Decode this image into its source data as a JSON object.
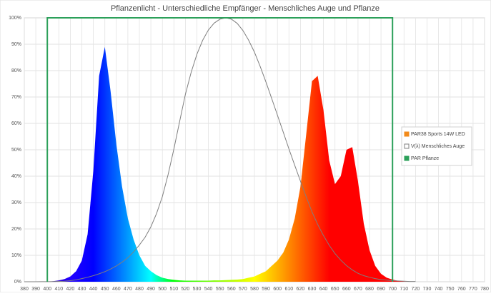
{
  "chart_data": {
    "type": "line",
    "title": "Pflanzenlicht - Unterschiedliche Empfänger - Menschliches Auge und Pflanze",
    "xlim": [
      380,
      780
    ],
    "ylim": [
      0,
      100
    ],
    "xticks": [
      380,
      390,
      400,
      410,
      420,
      430,
      440,
      450,
      460,
      470,
      480,
      490,
      500,
      510,
      520,
      530,
      540,
      550,
      560,
      570,
      580,
      590,
      600,
      610,
      620,
      630,
      640,
      650,
      660,
      670,
      680,
      690,
      700,
      710,
      720,
      730,
      740,
      750,
      760,
      770,
      780
    ],
    "yticks": [
      {
        "value": 0,
        "label": "0%"
      },
      {
        "value": 10,
        "label": "10%"
      },
      {
        "value": 20,
        "label": "20%"
      },
      {
        "value": 30,
        "label": "30%"
      },
      {
        "value": 40,
        "label": "40%"
      },
      {
        "value": 50,
        "label": "50%"
      },
      {
        "value": 60,
        "label": "60%"
      },
      {
        "value": 70,
        "label": "70%"
      },
      {
        "value": 80,
        "label": "80%"
      },
      {
        "value": 90,
        "label": "90%"
      },
      {
        "value": 100,
        "label": "100%"
      }
    ],
    "grid": true,
    "legend": "right",
    "series": [
      {
        "name": "PAR38 Sports 14W LED",
        "color": "#f28a1a",
        "fill": "spectrum",
        "x": [
          380,
          385,
          390,
          395,
          400,
          405,
          410,
          415,
          420,
          425,
          430,
          435,
          440,
          445,
          450,
          455,
          460,
          465,
          470,
          475,
          480,
          485,
          490,
          495,
          500,
          505,
          510,
          515,
          520,
          525,
          530,
          535,
          540,
          545,
          550,
          555,
          560,
          565,
          570,
          575,
          580,
          585,
          590,
          595,
          600,
          605,
          610,
          615,
          620,
          625,
          630,
          635,
          640,
          645,
          650,
          655,
          660,
          665,
          670,
          675,
          680,
          685,
          690,
          695,
          700,
          705,
          710,
          715,
          720
        ],
        "values": [
          0,
          0,
          0,
          0,
          0,
          0.2,
          0.5,
          1,
          2,
          4,
          8,
          18,
          42,
          78,
          89,
          72,
          52,
          36,
          24,
          16,
          10,
          6,
          4,
          2.5,
          1.5,
          1,
          0.7,
          0.5,
          0.4,
          0.4,
          0.4,
          0.4,
          0.4,
          0.5,
          0.5,
          0.6,
          0.7,
          0.8,
          1,
          1.5,
          2,
          3,
          4,
          6,
          8,
          11,
          16,
          24,
          36,
          56,
          76,
          78,
          65,
          46,
          37,
          40,
          50,
          51,
          38,
          22,
          12,
          6,
          3,
          1.5,
          0.8,
          0.3,
          0.1,
          0,
          0
        ]
      },
      {
        "name": "V(λ) Menschliches Auge",
        "color": "#7f7f7f",
        "x": [
          380,
          385,
          390,
          395,
          400,
          405,
          410,
          415,
          420,
          425,
          430,
          435,
          440,
          445,
          450,
          455,
          460,
          465,
          470,
          475,
          480,
          485,
          490,
          495,
          500,
          505,
          510,
          515,
          520,
          525,
          530,
          535,
          540,
          545,
          550,
          555,
          560,
          565,
          570,
          575,
          580,
          585,
          590,
          595,
          600,
          605,
          610,
          615,
          620,
          625,
          630,
          635,
          640,
          645,
          650,
          655,
          660,
          665,
          670,
          675,
          680,
          685,
          690,
          695,
          700,
          705,
          710,
          715,
          720
        ],
        "values": [
          0.004,
          0.006,
          0.012,
          0.02,
          0.04,
          0.06,
          0.12,
          0.2,
          0.4,
          0.7,
          1.2,
          1.7,
          2.3,
          3,
          3.8,
          4.8,
          6,
          7.4,
          9.1,
          11.3,
          13.9,
          16.9,
          20.8,
          25.9,
          32.3,
          40.7,
          50.3,
          60.8,
          71,
          79.3,
          86.2,
          91.5,
          95.4,
          98,
          99.5,
          100,
          99.5,
          97.9,
          95.2,
          91.5,
          87,
          81.6,
          75.7,
          69.5,
          63.1,
          56.7,
          50.3,
          44.1,
          38.1,
          32.1,
          26.5,
          21.7,
          17.5,
          13.8,
          10.7,
          8.2,
          6.1,
          4.5,
          3.2,
          2.3,
          1.7,
          1.2,
          0.8,
          0.6,
          0.4,
          0.3,
          0.2,
          0.1,
          0.1
        ]
      },
      {
        "name": "PAR Pflanze",
        "color": "#2ca05a",
        "x": [
          400,
          400,
          700,
          700
        ],
        "values": [
          0,
          100,
          100,
          0
        ]
      }
    ]
  }
}
